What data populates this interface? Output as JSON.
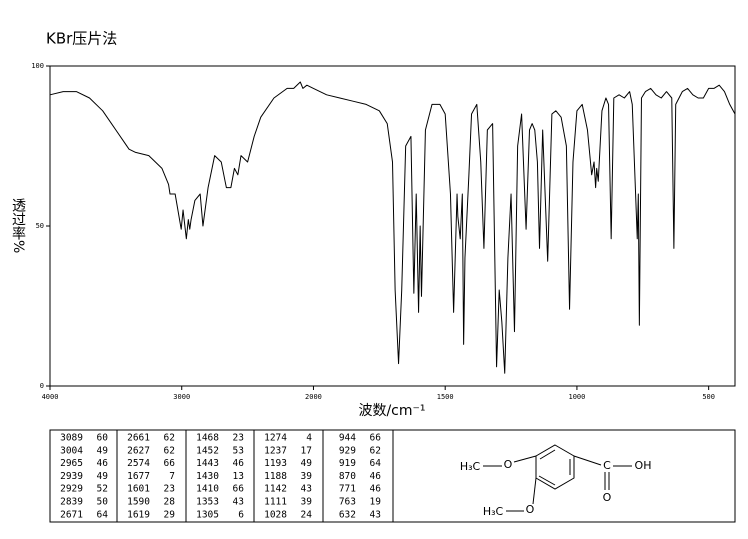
{
  "chart_data": {
    "type": "line",
    "title": "KBr压片法",
    "x_label": "波数/cm⁻¹",
    "y_label": "透过率%",
    "color": "#000000",
    "xlim": [
      4000,
      400
    ],
    "ylim": [
      0,
      100
    ],
    "xticks": [
      4000,
      3000,
      2000,
      1500,
      1000,
      500
    ],
    "yticks": [
      0,
      50,
      100
    ],
    "x": [
      4000,
      3900,
      3800,
      3700,
      3600,
      3500,
      3400,
      3350,
      3250,
      3150,
      3100,
      3089,
      3050,
      3004,
      2990,
      2965,
      2950,
      2939,
      2929,
      2900,
      2860,
      2839,
      2800,
      2750,
      2700,
      2671,
      2661,
      2627,
      2600,
      2574,
      2550,
      2500,
      2450,
      2400,
      2300,
      2200,
      2150,
      2100,
      2080,
      2050,
      2000,
      1950,
      1900,
      1850,
      1800,
      1750,
      1720,
      1700,
      1690,
      1677,
      1665,
      1650,
      1630,
      1619,
      1610,
      1601,
      1595,
      1590,
      1575,
      1550,
      1520,
      1500,
      1480,
      1468,
      1455,
      1452,
      1443,
      1435,
      1430,
      1425,
      1410,
      1400,
      1380,
      1365,
      1353,
      1340,
      1320,
      1305,
      1295,
      1285,
      1274,
      1262,
      1250,
      1237,
      1225,
      1210,
      1193,
      1180,
      1170,
      1160,
      1150,
      1142,
      1130,
      1111,
      1095,
      1080,
      1060,
      1040,
      1028,
      1015,
      1000,
      980,
      960,
      944,
      935,
      929,
      925,
      919,
      905,
      890,
      880,
      870,
      860,
      840,
      820,
      800,
      790,
      771,
      767,
      763,
      755,
      740,
      720,
      700,
      680,
      660,
      640,
      632,
      625,
      600,
      580,
      560,
      540,
      520,
      500,
      480,
      460,
      440,
      420,
      400
    ],
    "values": [
      91,
      92,
      92,
      90,
      86,
      80,
      74,
      73,
      72,
      68,
      63,
      60,
      60,
      49,
      55,
      46,
      52,
      49,
      52,
      58,
      60,
      50,
      62,
      72,
      70,
      64,
      62,
      62,
      68,
      66,
      72,
      70,
      78,
      84,
      90,
      93,
      93,
      95,
      93,
      94,
      93,
      91,
      90,
      89,
      88,
      86,
      82,
      70,
      30,
      7,
      30,
      75,
      78,
      29,
      60,
      23,
      50,
      28,
      80,
      88,
      88,
      85,
      60,
      23,
      60,
      53,
      46,
      60,
      13,
      40,
      66,
      85,
      88,
      70,
      43,
      80,
      82,
      6,
      30,
      20,
      4,
      40,
      60,
      17,
      75,
      85,
      49,
      80,
      82,
      80,
      70,
      43,
      80,
      39,
      85,
      86,
      84,
      75,
      24,
      70,
      86,
      88,
      80,
      66,
      70,
      62,
      68,
      64,
      86,
      90,
      88,
      46,
      90,
      91,
      90,
      92,
      88,
      46,
      60,
      19,
      90,
      92,
      93,
      91,
      90,
      92,
      90,
      43,
      88,
      92,
      93,
      91,
      90,
      90,
      93,
      93,
      94,
      92,
      88,
      85
    ]
  },
  "peak_table": {
    "columns": [
      [
        [
          3089,
          60
        ],
        [
          3004,
          49
        ],
        [
          2965,
          46
        ],
        [
          2939,
          49
        ],
        [
          2929,
          52
        ],
        [
          2839,
          50
        ],
        [
          2671,
          64
        ]
      ],
      [
        [
          2661,
          62
        ],
        [
          2627,
          62
        ],
        [
          2574,
          66
        ],
        [
          1677,
          7
        ],
        [
          1601,
          23
        ],
        [
          1590,
          28
        ],
        [
          1619,
          29
        ]
      ],
      [
        [
          1468,
          23
        ],
        [
          1452,
          53
        ],
        [
          1443,
          46
        ],
        [
          1430,
          13
        ],
        [
          1410,
          66
        ],
        [
          1353,
          43
        ],
        [
          1305,
          6
        ]
      ],
      [
        [
          1274,
          4
        ],
        [
          1237,
          17
        ],
        [
          1193,
          49
        ],
        [
          1188,
          39
        ],
        [
          1142,
          43
        ],
        [
          1111,
          39
        ],
        [
          1028,
          24
        ]
      ],
      [
        [
          944,
          66
        ],
        [
          929,
          62
        ],
        [
          919,
          64
        ],
        [
          870,
          46
        ],
        [
          771,
          46
        ],
        [
          763,
          19
        ],
        [
          632,
          43
        ]
      ]
    ]
  },
  "structure": {
    "labels": [
      "H₃C",
      "O",
      "C",
      "OH",
      "O",
      "H₃C",
      "O"
    ]
  }
}
